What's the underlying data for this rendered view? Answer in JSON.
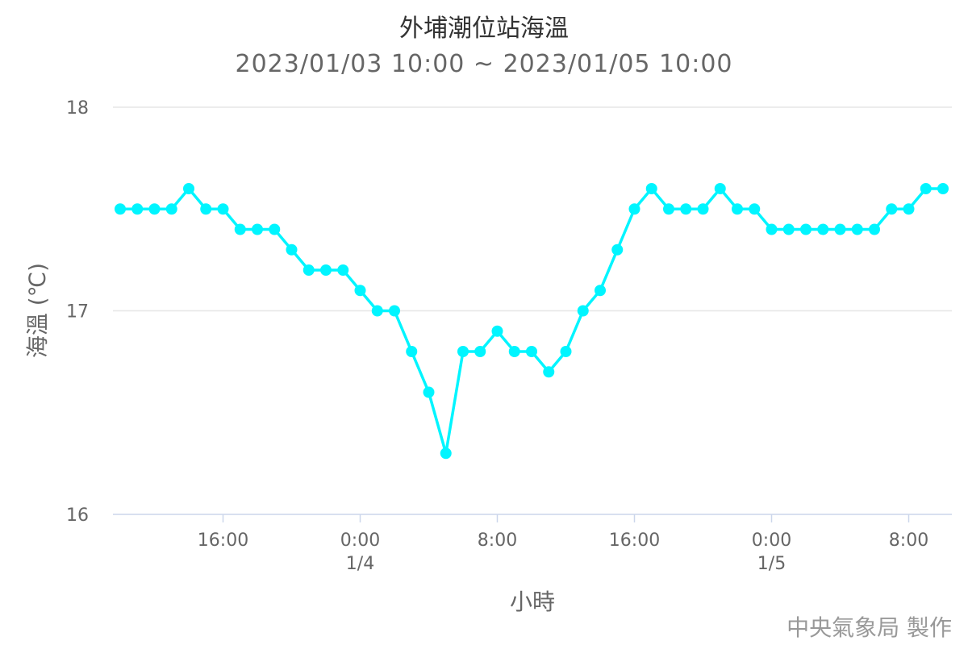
{
  "chart_data": {
    "type": "line",
    "title": "外埔潮位站海溫",
    "subtitle": "2023/01/03 10:00 ~ 2023/01/05 10:00",
    "xlabel": "小時",
    "ylabel": "海溫 (℃)",
    "ylim": [
      16,
      18
    ],
    "y_ticks": [
      16,
      17,
      18
    ],
    "grid": true,
    "legend": "none",
    "x_ticks": [
      {
        "at": "01/03 16:00",
        "label": "16:00",
        "sub": ""
      },
      {
        "at": "01/04 00:00",
        "label": "0:00",
        "sub": "1/4"
      },
      {
        "at": "01/04 08:00",
        "label": "8:00",
        "sub": ""
      },
      {
        "at": "01/04 16:00",
        "label": "16:00",
        "sub": ""
      },
      {
        "at": "01/05 00:00",
        "label": "0:00",
        "sub": "1/5"
      },
      {
        "at": "01/05 08:00",
        "label": "8:00",
        "sub": ""
      }
    ],
    "x": [
      "01/03 10:00",
      "01/03 11:00",
      "01/03 12:00",
      "01/03 13:00",
      "01/03 14:00",
      "01/03 15:00",
      "01/03 16:00",
      "01/03 17:00",
      "01/03 18:00",
      "01/03 19:00",
      "01/03 20:00",
      "01/03 21:00",
      "01/03 22:00",
      "01/03 23:00",
      "01/04 00:00",
      "01/04 01:00",
      "01/04 02:00",
      "01/04 03:00",
      "01/04 04:00",
      "01/04 05:00",
      "01/04 06:00",
      "01/04 07:00",
      "01/04 08:00",
      "01/04 09:00",
      "01/04 10:00",
      "01/04 11:00",
      "01/04 12:00",
      "01/04 13:00",
      "01/04 14:00",
      "01/04 15:00",
      "01/04 16:00",
      "01/04 17:00",
      "01/04 18:00",
      "01/04 19:00",
      "01/04 20:00",
      "01/04 21:00",
      "01/04 22:00",
      "01/04 23:00",
      "01/05 00:00",
      "01/05 01:00",
      "01/05 02:00",
      "01/05 03:00",
      "01/05 04:00",
      "01/05 05:00",
      "01/05 06:00",
      "01/05 07:00",
      "01/05 08:00",
      "01/05 09:00",
      "01/05 10:00"
    ],
    "series": [
      {
        "color": "#00f5ff",
        "values": [
          17.5,
          17.5,
          17.5,
          17.5,
          17.6,
          17.5,
          17.5,
          17.4,
          17.4,
          17.4,
          17.3,
          17.2,
          17.2,
          17.2,
          17.1,
          17.0,
          17.0,
          16.8,
          16.6,
          16.3,
          16.8,
          16.8,
          16.9,
          16.8,
          16.8,
          16.7,
          16.8,
          17.0,
          17.1,
          17.3,
          17.5,
          17.6,
          17.5,
          17.5,
          17.5,
          17.6,
          17.5,
          17.5,
          17.4,
          17.4,
          17.4,
          17.4,
          17.4,
          17.4,
          17.4,
          17.5,
          17.5,
          17.6,
          17.6
        ]
      }
    ]
  },
  "credit": "中央氣象局 製作"
}
